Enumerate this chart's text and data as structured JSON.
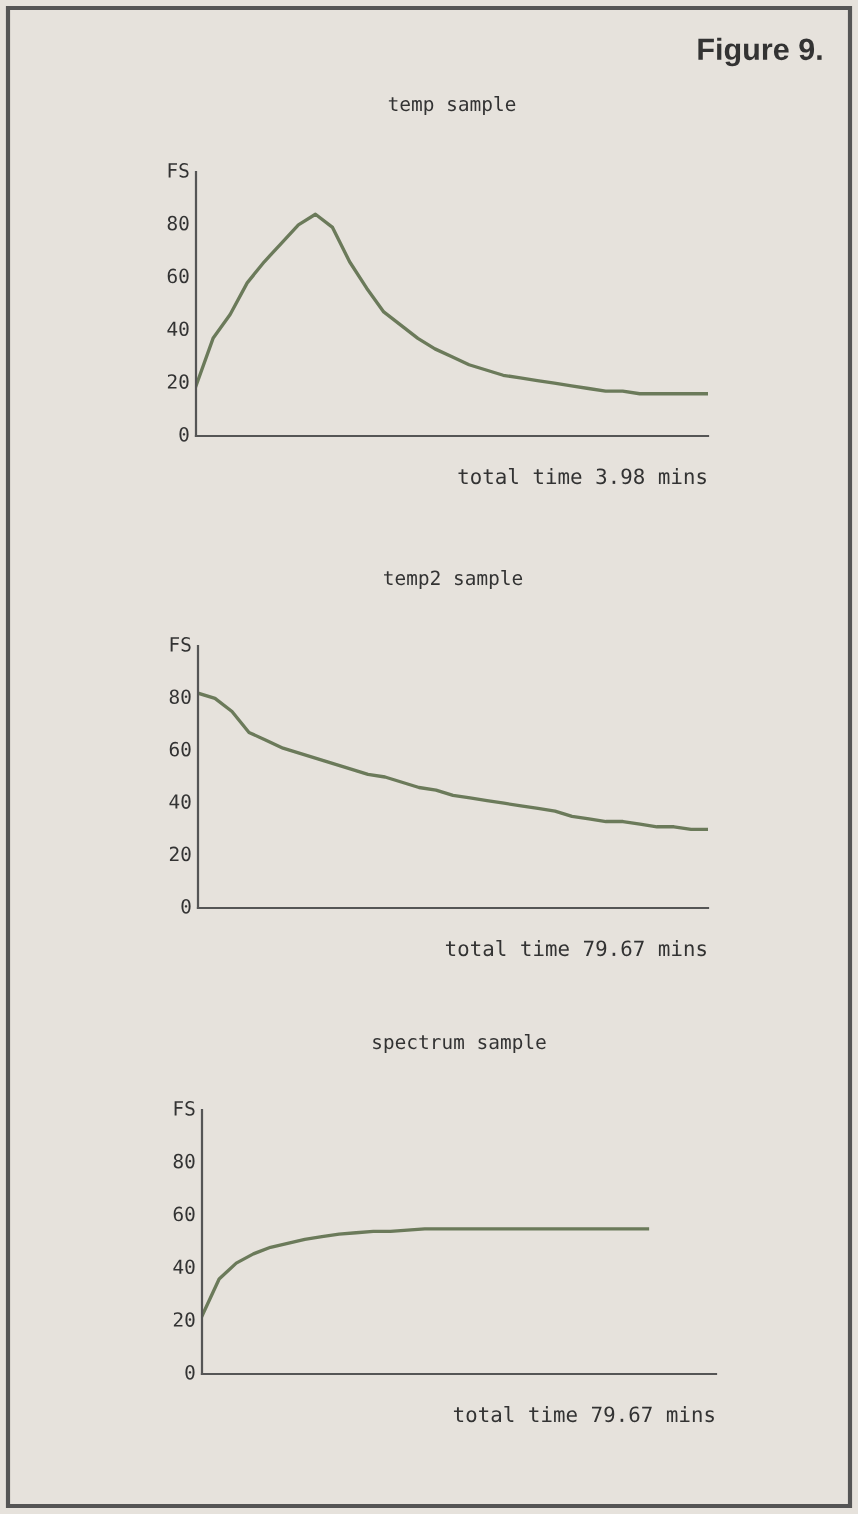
{
  "chart_data": [
    {
      "type": "line",
      "title": "temp sample",
      "xlabel": "total time 3.98 mins",
      "annotations": [
        "Figure 9."
      ],
      "categories": [
        null,
        null,
        null,
        null,
        null,
        null,
        null,
        null,
        null,
        null,
        null,
        null,
        null,
        null,
        null,
        null,
        null,
        null,
        null,
        null,
        null,
        null,
        null,
        null,
        null,
        null,
        null,
        null,
        null,
        null,
        null
      ],
      "series": [
        {
          "color": "#6b7a5a",
          "values": [
            19,
            37,
            46,
            58,
            66,
            73,
            80,
            84,
            79,
            66,
            56,
            47,
            42,
            37,
            33,
            30,
            27,
            25,
            23,
            22,
            21,
            20,
            19,
            18,
            17,
            17,
            16,
            16,
            16,
            16,
            16
          ]
        }
      ],
      "ylabel": "FS",
      "ylim": [
        0,
        100
      ],
      "yticks": [
        0,
        20,
        40,
        60,
        80
      ],
      "grid": false,
      "legend": false
    },
    {
      "type": "line",
      "title": "temp2 sample",
      "xlabel": "total time 79.67 mins",
      "categories": [
        null,
        null,
        null,
        null,
        null,
        null,
        null,
        null,
        null,
        null,
        null,
        null,
        null,
        null,
        null,
        null,
        null,
        null,
        null,
        null,
        null,
        null,
        null,
        null,
        null,
        null,
        null,
        null,
        null,
        null,
        null
      ],
      "series": [
        {
          "color": "#6b7a5a",
          "values": [
            82,
            80,
            75,
            67,
            64,
            61,
            59,
            57,
            55,
            53,
            51,
            50,
            48,
            46,
            45,
            43,
            42,
            41,
            40,
            39,
            38,
            37,
            35,
            34,
            33,
            33,
            32,
            31,
            31,
            30,
            30
          ]
        }
      ],
      "ylabel": "FS",
      "ylim": [
        0,
        100
      ],
      "yticks": [
        0,
        20,
        40,
        60,
        80
      ],
      "grid": false,
      "legend": false
    },
    {
      "type": "line",
      "title": "spectrum sample",
      "xlabel": "total time 79.67 mins",
      "categories": [
        null,
        null,
        null,
        null,
        null,
        null,
        null,
        null,
        null,
        null,
        null,
        null,
        null,
        null,
        null,
        null,
        null,
        null,
        null,
        null,
        null,
        null,
        null,
        null,
        null,
        null,
        null,
        null,
        null,
        null,
        null
      ],
      "series": [
        {
          "color": "#6b7a5a",
          "values": [
            22,
            36,
            42,
            45.5,
            48,
            49.5,
            51,
            52,
            53,
            53.5,
            54,
            54,
            54.5,
            55,
            55,
            55,
            55,
            55,
            55,
            55,
            55,
            55,
            55,
            55,
            55,
            55,
            55,
            null,
            null,
            null,
            null
          ]
        }
      ],
      "ylabel": "FS",
      "ylim": [
        0,
        100
      ],
      "yticks": [
        0,
        20,
        40,
        60,
        80
      ],
      "grid": false,
      "legend": false
    }
  ]
}
